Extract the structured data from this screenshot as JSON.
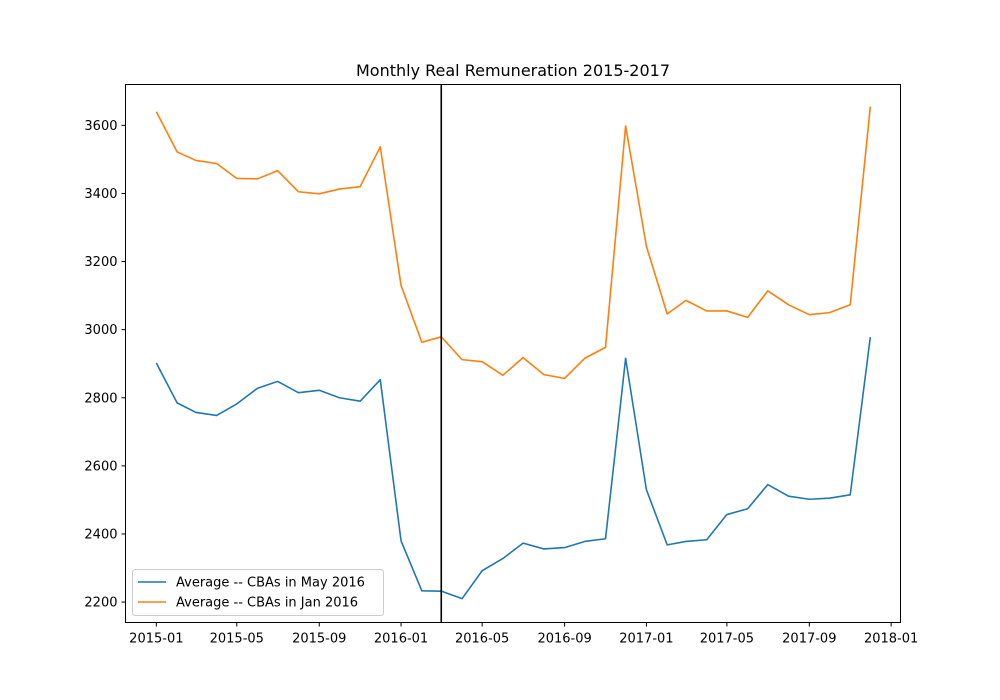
{
  "chart_data": {
    "type": "line",
    "title": "Monthly Real Remuneration 2015-2017",
    "xlabel": "",
    "ylabel": "",
    "x": [
      "2015-01",
      "2015-02",
      "2015-03",
      "2015-04",
      "2015-05",
      "2015-06",
      "2015-07",
      "2015-08",
      "2015-09",
      "2015-10",
      "2015-11",
      "2015-12",
      "2016-01",
      "2016-02",
      "2016-03",
      "2016-04",
      "2016-05",
      "2016-06",
      "2016-07",
      "2016-08",
      "2016-09",
      "2016-10",
      "2016-11",
      "2016-12",
      "2017-01",
      "2017-02",
      "2017-03",
      "2017-04",
      "2017-05",
      "2017-06",
      "2017-07",
      "2017-08",
      "2017-09",
      "2017-10",
      "2017-11",
      "2017-12"
    ],
    "series": [
      {
        "name": "Average -- CBAs in May 2016",
        "color": "#1f77b4",
        "values": [
          2902,
          2785,
          2757,
          2748,
          2782,
          2828,
          2848,
          2815,
          2822,
          2800,
          2790,
          2853,
          2380,
          2233,
          2232,
          2210,
          2292,
          2328,
          2373,
          2356,
          2360,
          2378,
          2386,
          2916,
          2530,
          2368,
          2378,
          2383,
          2457,
          2474,
          2545,
          2511,
          2502,
          2505,
          2515,
          2978
        ]
      },
      {
        "name": "Average -- CBAs in Jan 2016",
        "color": "#ff7f0e",
        "values": [
          3640,
          3522,
          3497,
          3488,
          3444,
          3443,
          3467,
          3405,
          3399,
          3413,
          3420,
          3537,
          3130,
          2963,
          2979,
          2912,
          2906,
          2866,
          2918,
          2868,
          2857,
          2916,
          2948,
          3598,
          3245,
          3046,
          3086,
          3055,
          3055,
          3036,
          3114,
          3073,
          3044,
          3050,
          3073,
          3655
        ]
      }
    ],
    "vline": {
      "x": "2016-03",
      "color": "#000000"
    },
    "xlim": [
      "2014-11-16",
      "2018-01-15"
    ],
    "ylim": [
      2140,
      3720
    ],
    "xticks": [
      {
        "date": "2015-01",
        "label": "2015-01"
      },
      {
        "date": "2015-05",
        "label": "2015-05"
      },
      {
        "date": "2015-09",
        "label": "2015-09"
      },
      {
        "date": "2016-01",
        "label": "2016-01"
      },
      {
        "date": "2016-05",
        "label": "2016-05"
      },
      {
        "date": "2016-09",
        "label": "2016-09"
      },
      {
        "date": "2017-01",
        "label": "2017-01"
      },
      {
        "date": "2017-05",
        "label": "2017-05"
      },
      {
        "date": "2017-09",
        "label": "2017-09"
      },
      {
        "date": "2018-01",
        "label": "2018-01"
      }
    ],
    "yticks": [
      {
        "value": 2200,
        "label": "2200"
      },
      {
        "value": 2400,
        "label": "2400"
      },
      {
        "value": 2600,
        "label": "2600"
      },
      {
        "value": 2800,
        "label": "2800"
      },
      {
        "value": 3000,
        "label": "3000"
      },
      {
        "value": 3200,
        "label": "3200"
      },
      {
        "value": 3400,
        "label": "3400"
      },
      {
        "value": 3600,
        "label": "3600"
      }
    ],
    "grid": false,
    "legend_position": "lower-left"
  }
}
